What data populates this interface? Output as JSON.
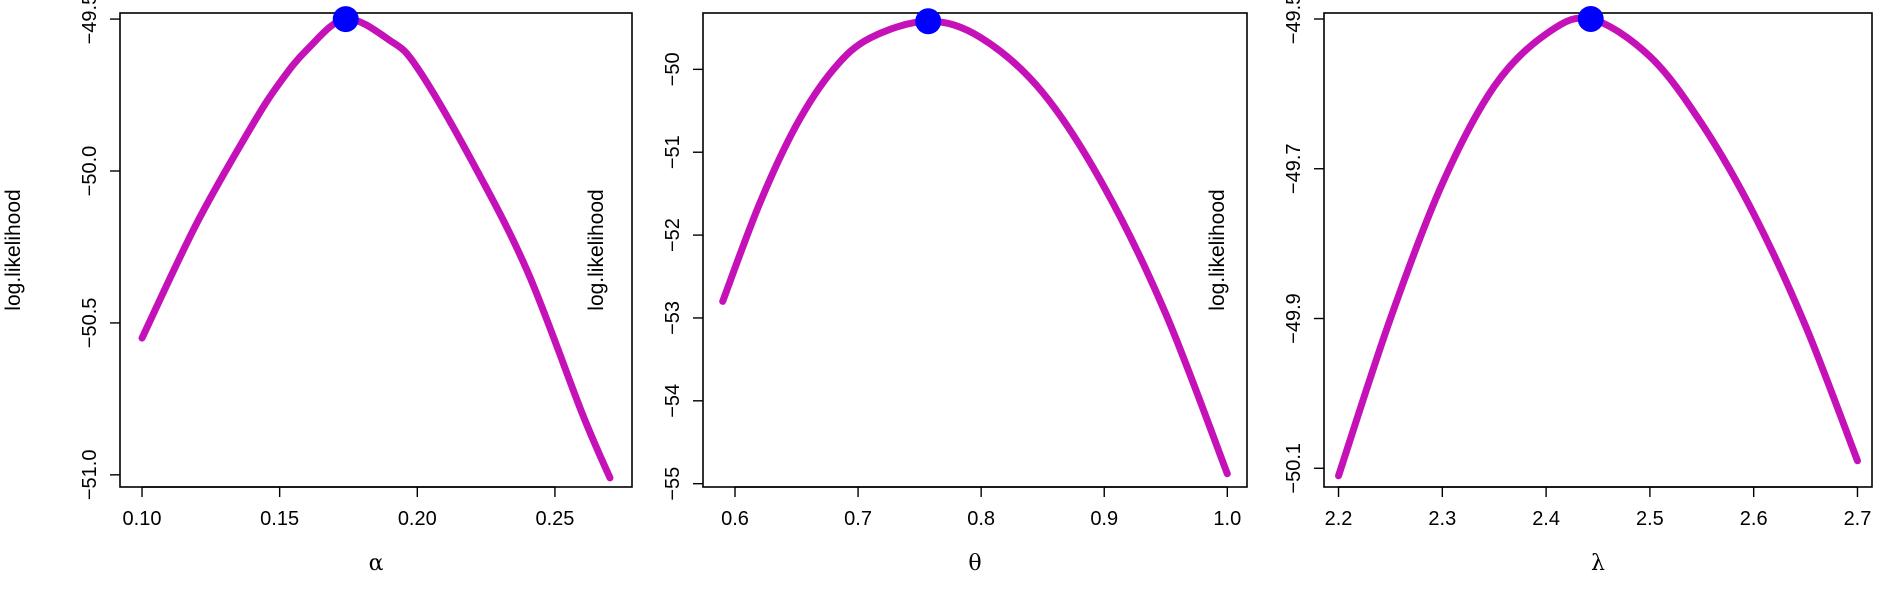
{
  "chart_data": [
    {
      "type": "line",
      "xlabel": "α",
      "ylabel": "log.likelihood",
      "xlim": [
        0.092,
        0.278
      ],
      "ylim": [
        -51.04,
        -49.48
      ],
      "xticks": [
        0.1,
        0.15,
        0.2,
        0.25
      ],
      "xtick_labels": [
        "0.10",
        "0.15",
        "0.20",
        "0.25"
      ],
      "yticks": [
        -49.5,
        -50.0,
        -50.5,
        -51.0
      ],
      "ytick_labels": [
        "−49.5",
        "−50.0",
        "−50.5",
        "−51.0"
      ],
      "grid": false,
      "line_color": "#c412b8",
      "marker_color": "#0000ff",
      "x": [
        0.1,
        0.12,
        0.14,
        0.15,
        0.16,
        0.174,
        0.19,
        0.2,
        0.22,
        0.24,
        0.26,
        0.27
      ],
      "y": [
        -50.55,
        -50.17,
        -49.85,
        -49.71,
        -49.6,
        -49.5,
        -49.57,
        -49.66,
        -49.97,
        -50.33,
        -50.8,
        -51.01
      ],
      "optimum": {
        "x": 0.174,
        "y": -49.5
      }
    },
    {
      "type": "line",
      "xlabel": "θ",
      "ylabel": "log.likelihood",
      "xlim": [
        0.574,
        1.016
      ],
      "ylim": [
        -55.04,
        -49.32
      ],
      "xticks": [
        0.6,
        0.7,
        0.8,
        0.9,
        1.0
      ],
      "xtick_labels": [
        "0.6",
        "0.7",
        "0.8",
        "0.9",
        "1.0"
      ],
      "yticks": [
        -50,
        -51,
        -52,
        -53,
        -54,
        -55
      ],
      "ytick_labels": [
        "−50",
        "−51",
        "−52",
        "−53",
        "−54",
        "−55"
      ],
      "grid": false,
      "line_color": "#c412b8",
      "marker_color": "#0000ff",
      "x": [
        0.59,
        0.62,
        0.65,
        0.68,
        0.71,
        0.757,
        0.8,
        0.85,
        0.9,
        0.95,
        1.0
      ],
      "y": [
        -52.8,
        -51.62,
        -50.67,
        -50.0,
        -49.62,
        -49.42,
        -49.62,
        -50.28,
        -51.42,
        -52.95,
        -54.88
      ],
      "optimum": {
        "x": 0.757,
        "y": -49.42
      }
    },
    {
      "type": "line",
      "xlabel": "λ",
      "ylabel": "log.likelihood",
      "xlim": [
        2.186,
        2.714
      ],
      "ylim": [
        -50.125,
        -49.492
      ],
      "xticks": [
        2.2,
        2.3,
        2.4,
        2.5,
        2.6,
        2.7
      ],
      "xtick_labels": [
        "2.2",
        "2.3",
        "2.4",
        "2.5",
        "2.6",
        "2.7"
      ],
      "yticks": [
        -49.5,
        -49.7,
        -49.9,
        -50.1
      ],
      "ytick_labels": [
        "−49.5",
        "−49.7",
        "−49.9",
        "−50.1"
      ],
      "grid": false,
      "line_color": "#c412b8",
      "marker_color": "#0000ff",
      "x": [
        2.2,
        2.25,
        2.3,
        2.35,
        2.4,
        2.443,
        2.5,
        2.55,
        2.6,
        2.65,
        2.7
      ],
      "y": [
        -50.11,
        -49.9,
        -49.72,
        -49.59,
        -49.52,
        -49.5,
        -49.55,
        -49.64,
        -49.76,
        -49.91,
        -50.09
      ],
      "optimum": {
        "x": 2.443,
        "y": -49.5
      }
    }
  ]
}
